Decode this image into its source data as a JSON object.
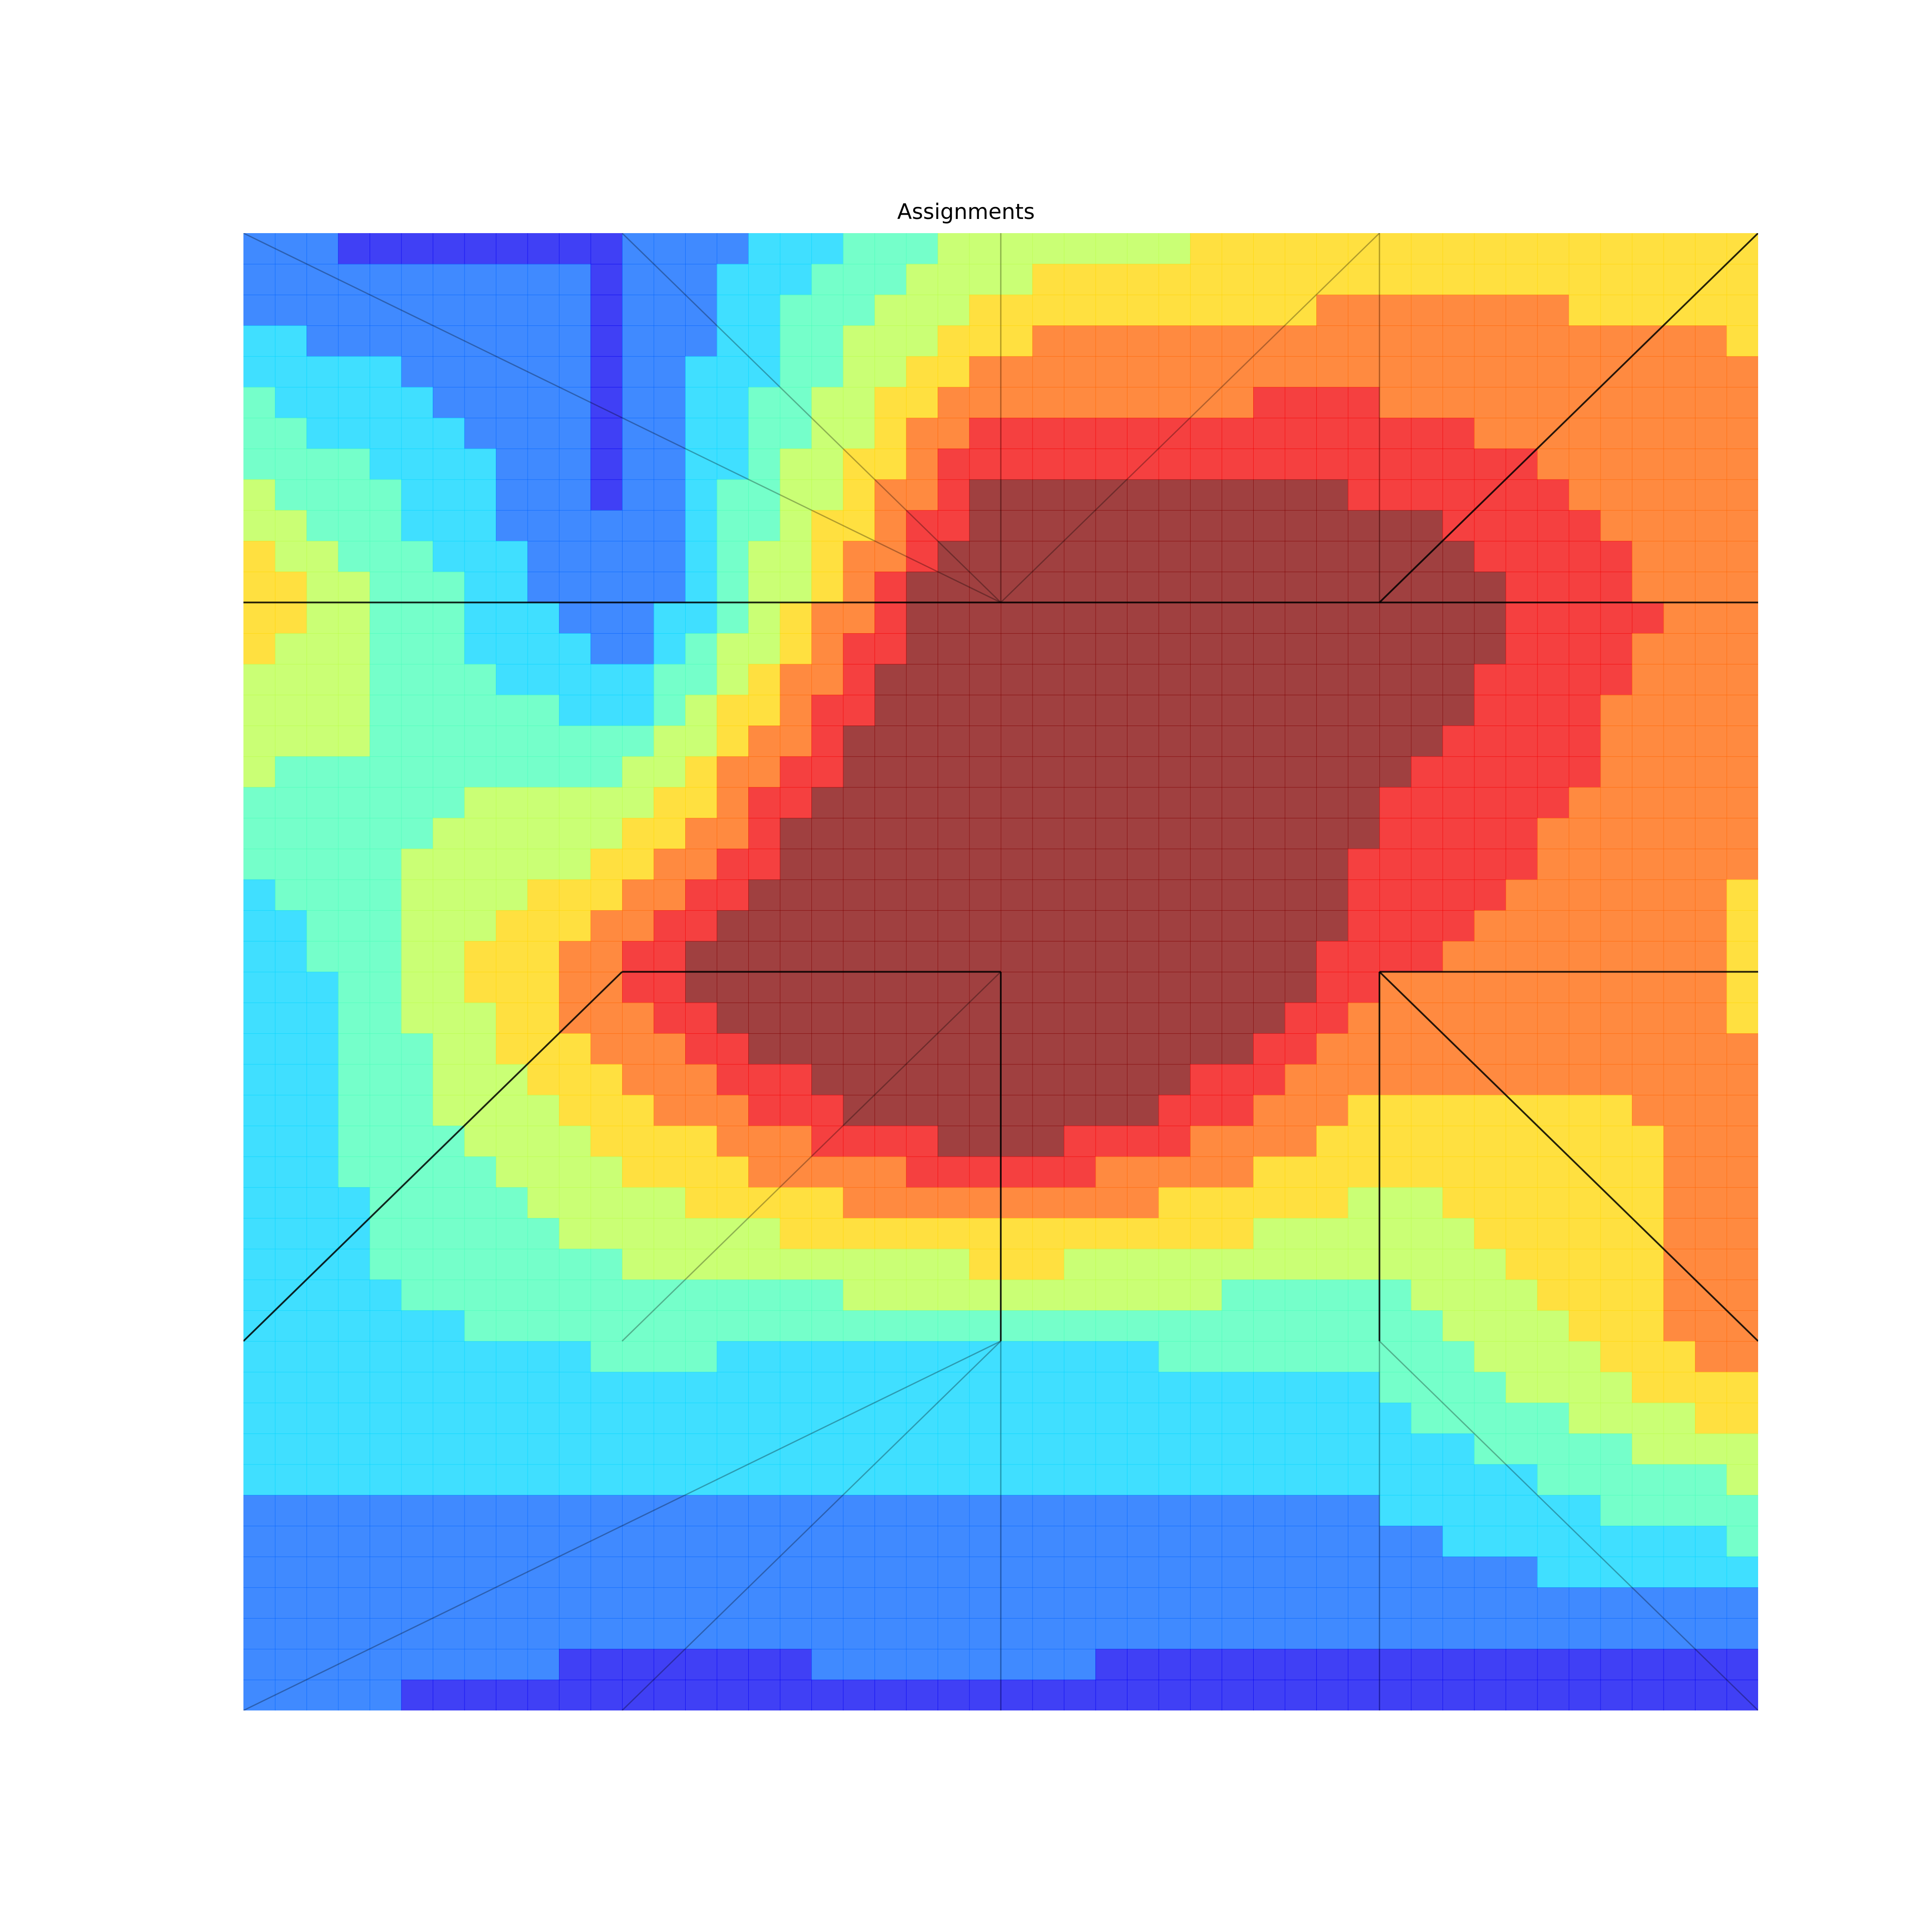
{
  "chart_data": {
    "type": "heatmap",
    "title": "Assignments",
    "xlabel": "",
    "ylabel": "",
    "axes_visible": false,
    "grid": false,
    "colormap": "jet",
    "color_range": [
      0,
      5
    ],
    "x": [
      0,
      1,
      2,
      3,
      4
    ],
    "y": [
      0,
      1,
      2,
      3,
      4
    ],
    "values": [
      [
        1.0,
        1.1,
        2.9,
        3.5,
        3.8
      ],
      [
        3.8,
        1.0,
        6.2,
        5.6,
        4.0
      ],
      [
        1.6,
        4.5,
        8.0,
        4.5,
        3.8
      ],
      [
        2.0,
        2.3,
        2.2,
        2.4,
        4.3
      ],
      [
        1.2,
        0.9,
        1.0,
        0.8,
        0.6
      ]
    ],
    "mesh_edges": [
      [
        [
          0,
          0
        ],
        [
          2,
          1
        ]
      ],
      [
        [
          1,
          0
        ],
        [
          2,
          1
        ]
      ],
      [
        [
          2,
          0
        ],
        [
          2,
          1
        ]
      ],
      [
        [
          3,
          0
        ],
        [
          2,
          1
        ]
      ],
      [
        [
          3,
          0
        ],
        [
          3,
          1
        ]
      ],
      [
        [
          4,
          0
        ],
        [
          3,
          1
        ]
      ],
      [
        [
          0,
          1
        ],
        [
          2,
          1
        ]
      ],
      [
        [
          2,
          1
        ],
        [
          3,
          1
        ]
      ],
      [
        [
          3,
          1
        ],
        [
          4,
          1
        ]
      ],
      [
        [
          0,
          3
        ],
        [
          1,
          2
        ]
      ],
      [
        [
          1,
          2
        ],
        [
          2,
          2
        ]
      ],
      [
        [
          2,
          2
        ],
        [
          1,
          3
        ]
      ],
      [
        [
          2,
          2
        ],
        [
          2,
          3
        ]
      ],
      [
        [
          3,
          2
        ],
        [
          4,
          2
        ]
      ],
      [
        [
          3,
          2
        ],
        [
          3,
          3
        ]
      ],
      [
        [
          3,
          2
        ],
        [
          4,
          3
        ]
      ],
      [
        [
          2,
          3
        ],
        [
          0,
          4
        ]
      ],
      [
        [
          2,
          3
        ],
        [
          1,
          4
        ]
      ],
      [
        [
          2,
          3
        ],
        [
          2,
          4
        ]
      ],
      [
        [
          3,
          3
        ],
        [
          3,
          4
        ]
      ],
      [
        [
          3,
          3
        ],
        [
          4,
          4
        ]
      ]
    ],
    "mesh_edges_emphasized": [
      [
        [
          0,
          1
        ],
        [
          2,
          1
        ]
      ],
      [
        [
          2,
          1
        ],
        [
          3,
          1
        ]
      ],
      [
        [
          3,
          1
        ],
        [
          4,
          1
        ]
      ],
      [
        [
          4,
          0
        ],
        [
          3,
          1
        ]
      ],
      [
        [
          1,
          2
        ],
        [
          2,
          2
        ]
      ],
      [
        [
          0,
          3
        ],
        [
          1,
          2
        ]
      ],
      [
        [
          2,
          2
        ],
        [
          2,
          3
        ]
      ],
      [
        [
          3,
          2
        ],
        [
          4,
          2
        ]
      ],
      [
        [
          3,
          2
        ],
        [
          3,
          3
        ]
      ],
      [
        [
          3,
          2
        ],
        [
          4,
          3
        ]
      ]
    ]
  }
}
